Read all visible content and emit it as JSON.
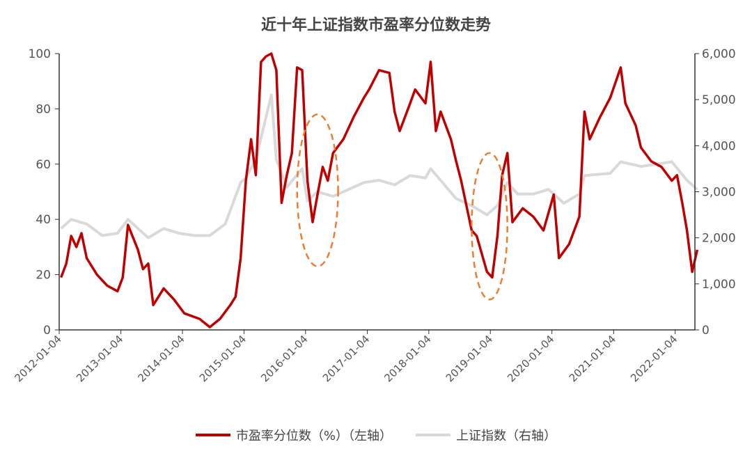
{
  "chart_data": {
    "type": "line",
    "title": "近十年上证指数市盈率分位数走势",
    "xlabel": "",
    "ylabel": "",
    "x_ticks": [
      "2012-01-04",
      "2013-01-04",
      "2014-01-04",
      "2015-01-04",
      "2016-01-04",
      "2017-01-04",
      "2018-01-04",
      "2019-01-04",
      "2020-01-04",
      "2021-01-04",
      "2022-01-04"
    ],
    "x_range": [
      "2012-01-04",
      "2022-05-01"
    ],
    "y_left": {
      "range": [
        0,
        100
      ],
      "ticks": [
        "0",
        "20",
        "40",
        "60",
        "80",
        "100"
      ]
    },
    "y_right": {
      "range": [
        0,
        6000
      ],
      "ticks": [
        "0",
        "1,000",
        "2,000",
        "3,000",
        "4,000",
        "5,000",
        "6,000"
      ]
    },
    "grid": false,
    "legend_position": "bottom",
    "series": [
      {
        "name": "市盈率分位数（%）（左轴）",
        "axis": "left",
        "color": "#C00000",
        "points": [
          [
            "2012-01",
            19
          ],
          [
            "2012-02",
            24
          ],
          [
            "2012-03",
            34
          ],
          [
            "2012-04",
            30
          ],
          [
            "2012-05",
            35
          ],
          [
            "2012-06",
            26
          ],
          [
            "2012-08",
            20
          ],
          [
            "2012-10",
            16
          ],
          [
            "2012-12",
            14
          ],
          [
            "2013-01",
            19
          ],
          [
            "2013-02",
            38
          ],
          [
            "2013-04",
            29
          ],
          [
            "2013-05",
            22
          ],
          [
            "2013-06",
            24
          ],
          [
            "2013-07",
            9
          ],
          [
            "2013-09",
            15
          ],
          [
            "2013-11",
            11
          ],
          [
            "2014-01",
            6
          ],
          [
            "2014-04",
            4
          ],
          [
            "2014-06",
            1
          ],
          [
            "2014-08",
            4
          ],
          [
            "2014-10",
            9
          ],
          [
            "2014-11",
            12
          ],
          [
            "2014-12",
            26
          ],
          [
            "2015-01",
            54
          ],
          [
            "2015-02",
            69
          ],
          [
            "2015-03",
            56
          ],
          [
            "2015-04",
            97
          ],
          [
            "2015-05",
            99
          ],
          [
            "2015-06",
            100
          ],
          [
            "2015-07",
            94
          ],
          [
            "2015-08",
            46
          ],
          [
            "2015-09",
            56
          ],
          [
            "2015-10",
            64
          ],
          [
            "2015-11",
            95
          ],
          [
            "2015-12",
            94
          ],
          [
            "2016-01",
            54
          ],
          [
            "2016-02",
            39
          ],
          [
            "2016-03",
            49
          ],
          [
            "2016-04",
            59
          ],
          [
            "2016-05",
            54
          ],
          [
            "2016-06",
            64
          ],
          [
            "2016-08",
            69
          ],
          [
            "2016-10",
            77
          ],
          [
            "2016-12",
            84
          ],
          [
            "2017-01",
            87
          ],
          [
            "2017-03",
            94
          ],
          [
            "2017-05",
            93
          ],
          [
            "2017-06",
            79
          ],
          [
            "2017-07",
            72
          ],
          [
            "2017-09",
            82
          ],
          [
            "2017-10",
            87
          ],
          [
            "2017-12",
            82
          ],
          [
            "2018-01",
            97
          ],
          [
            "2018-02",
            72
          ],
          [
            "2018-03",
            79
          ],
          [
            "2018-05",
            69
          ],
          [
            "2018-06",
            61
          ],
          [
            "2018-07",
            54
          ],
          [
            "2018-09",
            36
          ],
          [
            "2018-10",
            34
          ],
          [
            "2018-12",
            21
          ],
          [
            "2019-01",
            19
          ],
          [
            "2019-02",
            34
          ],
          [
            "2019-03",
            56
          ],
          [
            "2019-04",
            64
          ],
          [
            "2019-05",
            39
          ],
          [
            "2019-07",
            44
          ],
          [
            "2019-09",
            41
          ],
          [
            "2019-11",
            36
          ],
          [
            "2020-01",
            49
          ],
          [
            "2020-02",
            26
          ],
          [
            "2020-04",
            31
          ],
          [
            "2020-06",
            41
          ],
          [
            "2020-07",
            79
          ],
          [
            "2020-08",
            69
          ],
          [
            "2020-10",
            77
          ],
          [
            "2020-12",
            84
          ],
          [
            "2021-02",
            95
          ],
          [
            "2021-03",
            82
          ],
          [
            "2021-05",
            74
          ],
          [
            "2021-06",
            66
          ],
          [
            "2021-08",
            61
          ],
          [
            "2021-10",
            59
          ],
          [
            "2021-12",
            54
          ],
          [
            "2022-01",
            56
          ],
          [
            "2022-02",
            46
          ],
          [
            "2022-03",
            36
          ],
          [
            "2022-04",
            21
          ],
          [
            "2022-05",
            29
          ]
        ]
      },
      {
        "name": "上证指数（右轴）",
        "axis": "right",
        "color": "#D9D9D9",
        "points": [
          [
            "2012-01",
            2200
          ],
          [
            "2012-03",
            2400
          ],
          [
            "2012-06",
            2300
          ],
          [
            "2012-09",
            2050
          ],
          [
            "2012-12",
            2100
          ],
          [
            "2013-02",
            2400
          ],
          [
            "2013-06",
            2000
          ],
          [
            "2013-09",
            2200
          ],
          [
            "2013-12",
            2100
          ],
          [
            "2014-03",
            2050
          ],
          [
            "2014-06",
            2050
          ],
          [
            "2014-09",
            2300
          ],
          [
            "2014-12",
            3200
          ],
          [
            "2015-01",
            3300
          ],
          [
            "2015-03",
            3700
          ],
          [
            "2015-06",
            5100
          ],
          [
            "2015-07",
            3700
          ],
          [
            "2015-09",
            3100
          ],
          [
            "2015-12",
            3500
          ],
          [
            "2016-01",
            2800
          ],
          [
            "2016-03",
            3000
          ],
          [
            "2016-06",
            2900
          ],
          [
            "2016-09",
            3050
          ],
          [
            "2016-12",
            3200
          ],
          [
            "2017-03",
            3250
          ],
          [
            "2017-06",
            3150
          ],
          [
            "2017-09",
            3350
          ],
          [
            "2017-12",
            3300
          ],
          [
            "2018-01",
            3500
          ],
          [
            "2018-03",
            3250
          ],
          [
            "2018-06",
            2850
          ],
          [
            "2018-09",
            2700
          ],
          [
            "2018-12",
            2500
          ],
          [
            "2019-02",
            2700
          ],
          [
            "2019-04",
            3200
          ],
          [
            "2019-06",
            2950
          ],
          [
            "2019-09",
            2950
          ],
          [
            "2019-12",
            3050
          ],
          [
            "2020-03",
            2750
          ],
          [
            "2020-06",
            2950
          ],
          [
            "2020-07",
            3350
          ],
          [
            "2020-12",
            3400
          ],
          [
            "2021-02",
            3650
          ],
          [
            "2021-06",
            3550
          ],
          [
            "2021-09",
            3600
          ],
          [
            "2021-12",
            3650
          ],
          [
            "2022-03",
            3250
          ],
          [
            "2022-05",
            3050
          ]
        ]
      }
    ],
    "annotations": [
      {
        "shape": "dashed-ellipse",
        "color": "#ED7D31",
        "x": [
          "2015-11",
          "2016-07"
        ],
        "y": [
          23,
          78
        ]
      },
      {
        "shape": "dashed-ellipse",
        "color": "#ED7D31",
        "x": [
          "2018-09",
          "2019-04"
        ],
        "y": [
          11,
          64
        ]
      }
    ]
  }
}
